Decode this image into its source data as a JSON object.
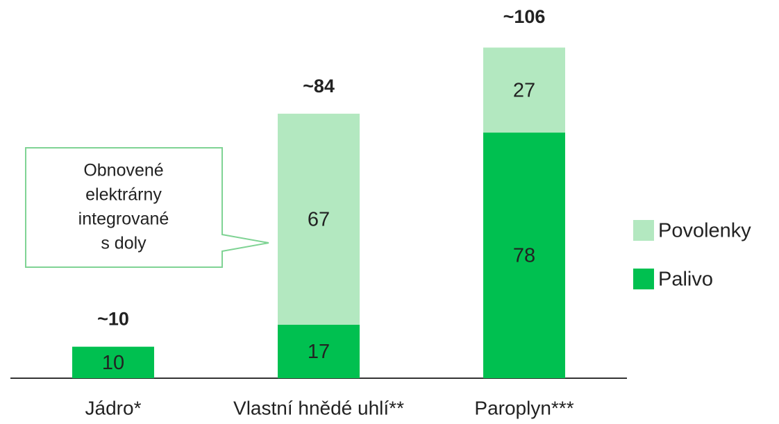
{
  "chart_data": {
    "type": "stacked_bar",
    "categories": [
      "Jádro*",
      "Vlastní hnědé uhlí**",
      "Paroplyn***"
    ],
    "series": [
      {
        "name": "Palivo",
        "color": "#00c050",
        "values": [
          10,
          17,
          78
        ]
      },
      {
        "name": "Povolenky",
        "color": "#b3e8c0",
        "values": [
          null,
          67,
          27
        ]
      }
    ],
    "totals": [
      10,
      84,
      106
    ],
    "total_labels": [
      "~10",
      "~84",
      "~106"
    ],
    "annotation": [
      "Obnovené",
      "elektrárny",
      "integrované",
      "s doly"
    ]
  }
}
